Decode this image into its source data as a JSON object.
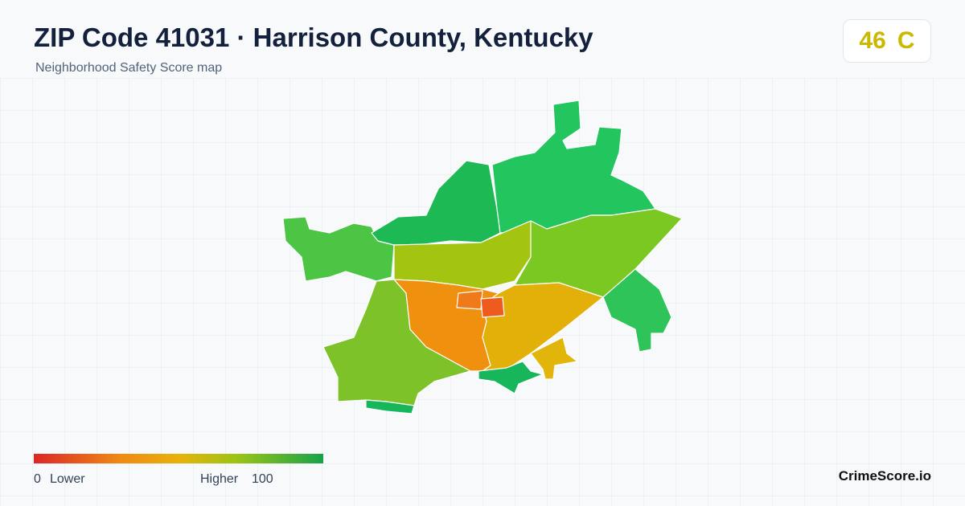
{
  "header": {
    "title": "ZIP Code 41031 · Harrison County, Kentucky",
    "subtitle": "Neighborhood Safety Score map"
  },
  "score": {
    "value": 46,
    "grade": "C"
  },
  "legend": {
    "min": 0,
    "low_label": "Lower",
    "high_label": "Higher",
    "max": 100
  },
  "brand": "CrimeScore.io"
}
